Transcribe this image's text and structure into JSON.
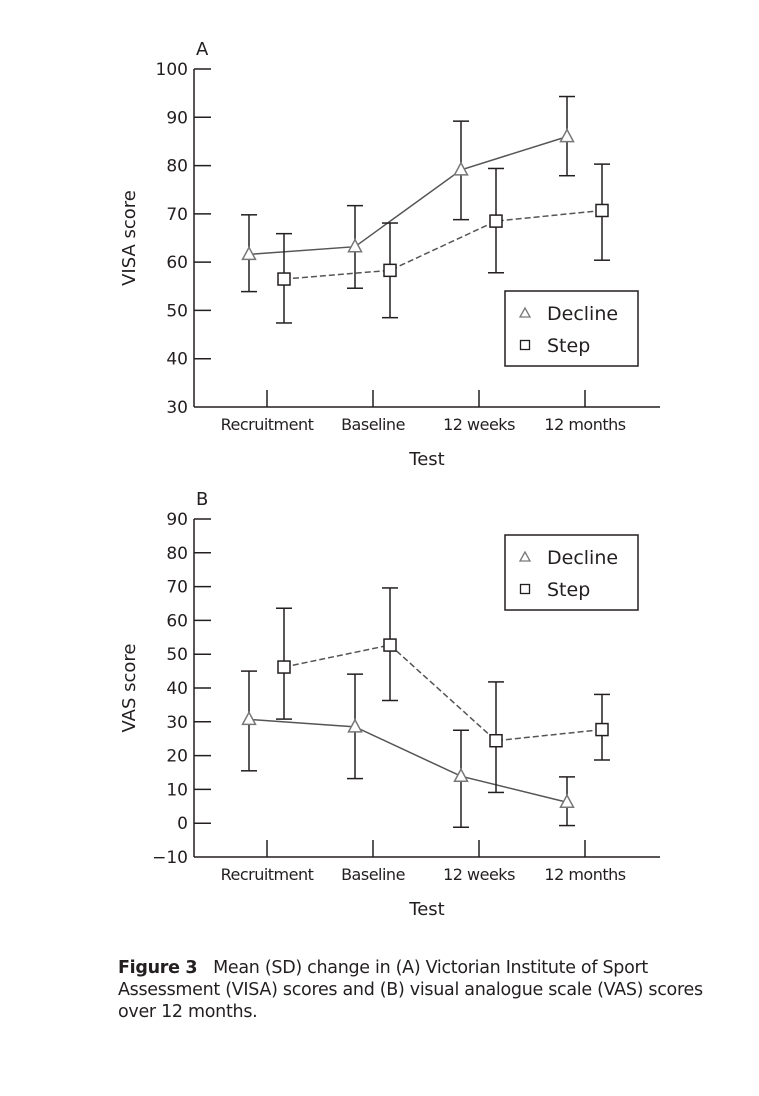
{
  "chart_data": [
    {
      "type": "line",
      "panel_label": "A",
      "xlabel": "Test",
      "ylabel": "VISA score",
      "categories": [
        "Recruitment",
        "Baseline",
        "12 weeks",
        "12 months"
      ],
      "ylim": [
        30,
        100
      ],
      "yticks": [
        30,
        40,
        50,
        60,
        70,
        80,
        90,
        100
      ],
      "legend_position": "lower-right",
      "grid": false,
      "error_bars": "SD",
      "series": [
        {
          "name": "Decline",
          "marker": "triangle",
          "line": "solid",
          "values": [
            61.6,
            63.2,
            79.1,
            86.0
          ],
          "upper": [
            69.8,
            71.7,
            89.2,
            94.3
          ],
          "lower": [
            53.9,
            54.6,
            68.8,
            77.9
          ]
        },
        {
          "name": "Step",
          "marker": "square",
          "line": "dashed",
          "values": [
            56.5,
            58.3,
            68.5,
            70.7
          ],
          "upper": [
            65.9,
            68.1,
            79.4,
            80.3
          ],
          "lower": [
            47.4,
            48.5,
            57.8,
            60.4
          ]
        }
      ]
    },
    {
      "type": "line",
      "panel_label": "B",
      "xlabel": "Test",
      "ylabel": "VAS score",
      "categories": [
        "Recruitment",
        "Baseline",
        "12 weeks",
        "12 months"
      ],
      "ylim": [
        -10,
        90
      ],
      "yticks": [
        -10,
        0,
        10,
        20,
        30,
        40,
        50,
        60,
        70,
        80,
        90
      ],
      "legend_position": "top-right",
      "grid": false,
      "error_bars": "SD",
      "series": [
        {
          "name": "Decline",
          "marker": "triangle",
          "line": "solid",
          "values": [
            30.7,
            28.5,
            13.9,
            6.2
          ],
          "upper": [
            45.0,
            44.1,
            27.5,
            13.7
          ],
          "lower": [
            15.5,
            13.2,
            -1.2,
            -0.7
          ]
        },
        {
          "name": "Step",
          "marker": "square",
          "line": "dashed",
          "values": [
            46.2,
            52.7,
            24.4,
            27.7
          ],
          "upper": [
            63.6,
            69.6,
            41.8,
            38.1
          ],
          "lower": [
            30.8,
            36.3,
            9.1,
            18.7
          ]
        }
      ]
    }
  ],
  "caption": {
    "label": "Figure 3",
    "text": "Mean (SD) change in (A) Victorian Institute of Sport Assessment (VISA) scores and (B) visual analogue scale (VAS) scores over 12 months."
  }
}
